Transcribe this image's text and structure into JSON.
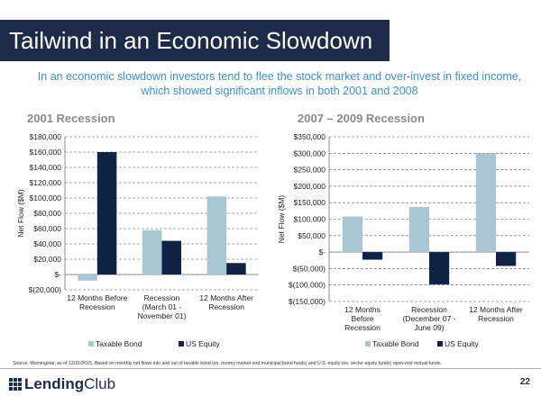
{
  "slide": {
    "title": "Tailwind in an Economic Slowdown",
    "subtitle": "In an economic slowdown investors tend to flee the stock market and over-invest in fixed income, which showed significant inflows in both 2001 and 2008",
    "source": "Source: Morningstar, as of 12/31/2015. Based on monthly net flows into and out of taxable bond (ex. money market and municipal bond funds) and U.S. equity (ex. sector equity funds) open-end mutual funds.",
    "page_number": "22"
  },
  "logo": {
    "part1": "Lending",
    "part2": "Club"
  },
  "colors": {
    "taxable_bond": "#a9c7d3",
    "us_equity": "#0f2347",
    "title_bg": "#1c2b48",
    "subtitle": "#3b8fd0"
  },
  "chart_data": [
    {
      "type": "bar",
      "title": "2001 Recession",
      "ylabel": "Net Flow ($M)",
      "categories": [
        [
          "12 Months Before",
          "Recession"
        ],
        [
          "Recession",
          "(March 01 -",
          "November 01)"
        ],
        [
          "12 Months After",
          "Recession"
        ]
      ],
      "series": [
        {
          "name": "Taxable Bond",
          "values": [
            -8000,
            58000,
            102000
          ]
        },
        {
          "name": "US Equity",
          "values": [
            160000,
            44000,
            15000
          ]
        }
      ],
      "ylim": [
        -20000,
        180000
      ],
      "yticks": [
        -20000,
        0,
        20000,
        40000,
        60000,
        80000,
        100000,
        120000,
        140000,
        160000,
        180000
      ],
      "ytick_labels": [
        "$(20,000)",
        "$-",
        "$20,000",
        "$40,000",
        "$60,000",
        "$80,000",
        "$100,000",
        "$120,000",
        "$140,000",
        "$160,000",
        "$180,000"
      ],
      "grid": true,
      "legend": "bottom"
    },
    {
      "type": "bar",
      "title": "2007 – 2009 Recession",
      "ylabel": "Net Flow ($M)",
      "categories": [
        [
          "12 Months",
          "Before",
          "Recession"
        ],
        [
          "Recession",
          "(December 07 -",
          "June 09)"
        ],
        [
          "12 Months After",
          "Recession"
        ]
      ],
      "series": [
        {
          "name": "Taxable Bond",
          "values": [
            108000,
            137000,
            300000
          ]
        },
        {
          "name": "US Equity",
          "values": [
            -23000,
            -98000,
            -42000
          ]
        }
      ],
      "ylim": [
        -150000,
        350000
      ],
      "yticks": [
        -150000,
        -100000,
        -50000,
        0,
        50000,
        100000,
        150000,
        200000,
        250000,
        300000,
        350000
      ],
      "ytick_labels": [
        "$(150,000)",
        "$(100,000)",
        "$(50,000)",
        "$-",
        "$50,000",
        "$100,000",
        "$150,000",
        "$200,000",
        "$250,000",
        "$300,000",
        "$350,000"
      ],
      "grid": true,
      "legend": "bottom"
    }
  ]
}
